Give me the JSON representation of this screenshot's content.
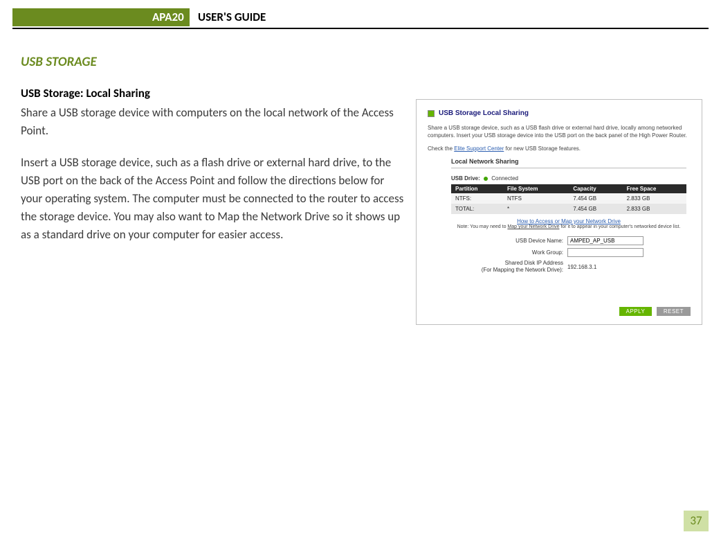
{
  "header": {
    "tag": "APA20",
    "title": "USER'S GUIDE",
    "bar_color": "#6b8b1f",
    "rule_color": "#000000"
  },
  "section": {
    "heading": "USB STORAGE",
    "heading_color": "#6b8b1f",
    "subheading": "USB Storage: Local Sharing",
    "para1": "Share a USB storage device with computers on the local network of the Access Point.",
    "para2": "Insert a USB storage device, such as a flash drive or external hard drive, to the USB port on the back of the Access Point and follow the directions below for your operating system. The computer must be connected to the router to access the storage device. You may also want to Map the Network Drive so it shows up as a standard drive on your computer for easier access."
  },
  "screenshot": {
    "title": "USB Storage Local Sharing",
    "title_color": "#1a1a7a",
    "square_color": "#65b500",
    "desc_line1": "Share a USB storage device, such as a USB flash drive or external hard drive, locally among networked computers. Insert your USB storage device into the USB port on the back panel of the High Power Router.",
    "desc_line2_pre": "Check the ",
    "desc_link": "Elite Support Center",
    "desc_line2_post": " for new USB Storage features.",
    "local_sharing_label": "Local Network Sharing",
    "usb_drive_label": "USB Drive:",
    "usb_drive_status": "Connected",
    "status_color": "#41a500",
    "table": {
      "columns": [
        "Partition",
        "File System",
        "Capacity",
        "Free Space"
      ],
      "rows": [
        [
          "NTFS:",
          "NTFS",
          "7.454 GB",
          "2.833 GB"
        ],
        [
          "TOTAL:",
          "*",
          "7.454 GB",
          "2.833 GB"
        ]
      ],
      "header_bg": "#2a2a2a"
    },
    "howto_link": "How to Access or Map your Network Drive",
    "note_pre": "Note: You may need to ",
    "note_link": "Map your Network Drive",
    "note_post": " for it to appear in your computer's networked device list.",
    "fields": {
      "device_name_label": "USB Device Name:",
      "device_name_value": "AMPED_AP_USB",
      "workgroup_label": "Work Group:",
      "workgroup_value": "",
      "ip_label_l1": "Shared Disk IP Address",
      "ip_label_l2": "(For Mapping the Network Drive):",
      "ip_value": "192.168.3.1"
    },
    "buttons": {
      "apply": "APPLY",
      "reset": "RESET",
      "apply_bg": "#65b500",
      "reset_bg": "#9a9a9a"
    }
  },
  "page_number": "37",
  "page_badge_bg": "#cfe0a5",
  "page_badge_fg": "#6b8b1f"
}
